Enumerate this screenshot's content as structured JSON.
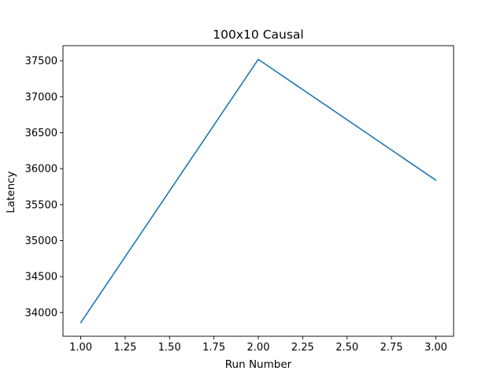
{
  "chart_data": {
    "type": "line",
    "title": "100x10 Causal",
    "xlabel": "Run Number",
    "ylabel": "Latency",
    "xlim": [
      0.9,
      3.1
    ],
    "ylim": [
      33670,
      37710
    ],
    "xticks": [
      1.0,
      1.25,
      1.5,
      1.75,
      2.0,
      2.25,
      2.5,
      2.75,
      3.0
    ],
    "xtick_labels": [
      "1.00",
      "1.25",
      "1.50",
      "1.75",
      "2.00",
      "2.25",
      "2.50",
      "2.75",
      "3.00"
    ],
    "yticks": [
      34000,
      34500,
      35000,
      35500,
      36000,
      36500,
      37000,
      37500
    ],
    "ytick_labels": [
      "34000",
      "34500",
      "35000",
      "35500",
      "36000",
      "36500",
      "37000",
      "37500"
    ],
    "grid": false,
    "legend": "none",
    "series": [
      {
        "color": "#1f77b4",
        "x": [
          1,
          2,
          3
        ],
        "y": [
          33860,
          37520,
          35840
        ]
      }
    ]
  }
}
